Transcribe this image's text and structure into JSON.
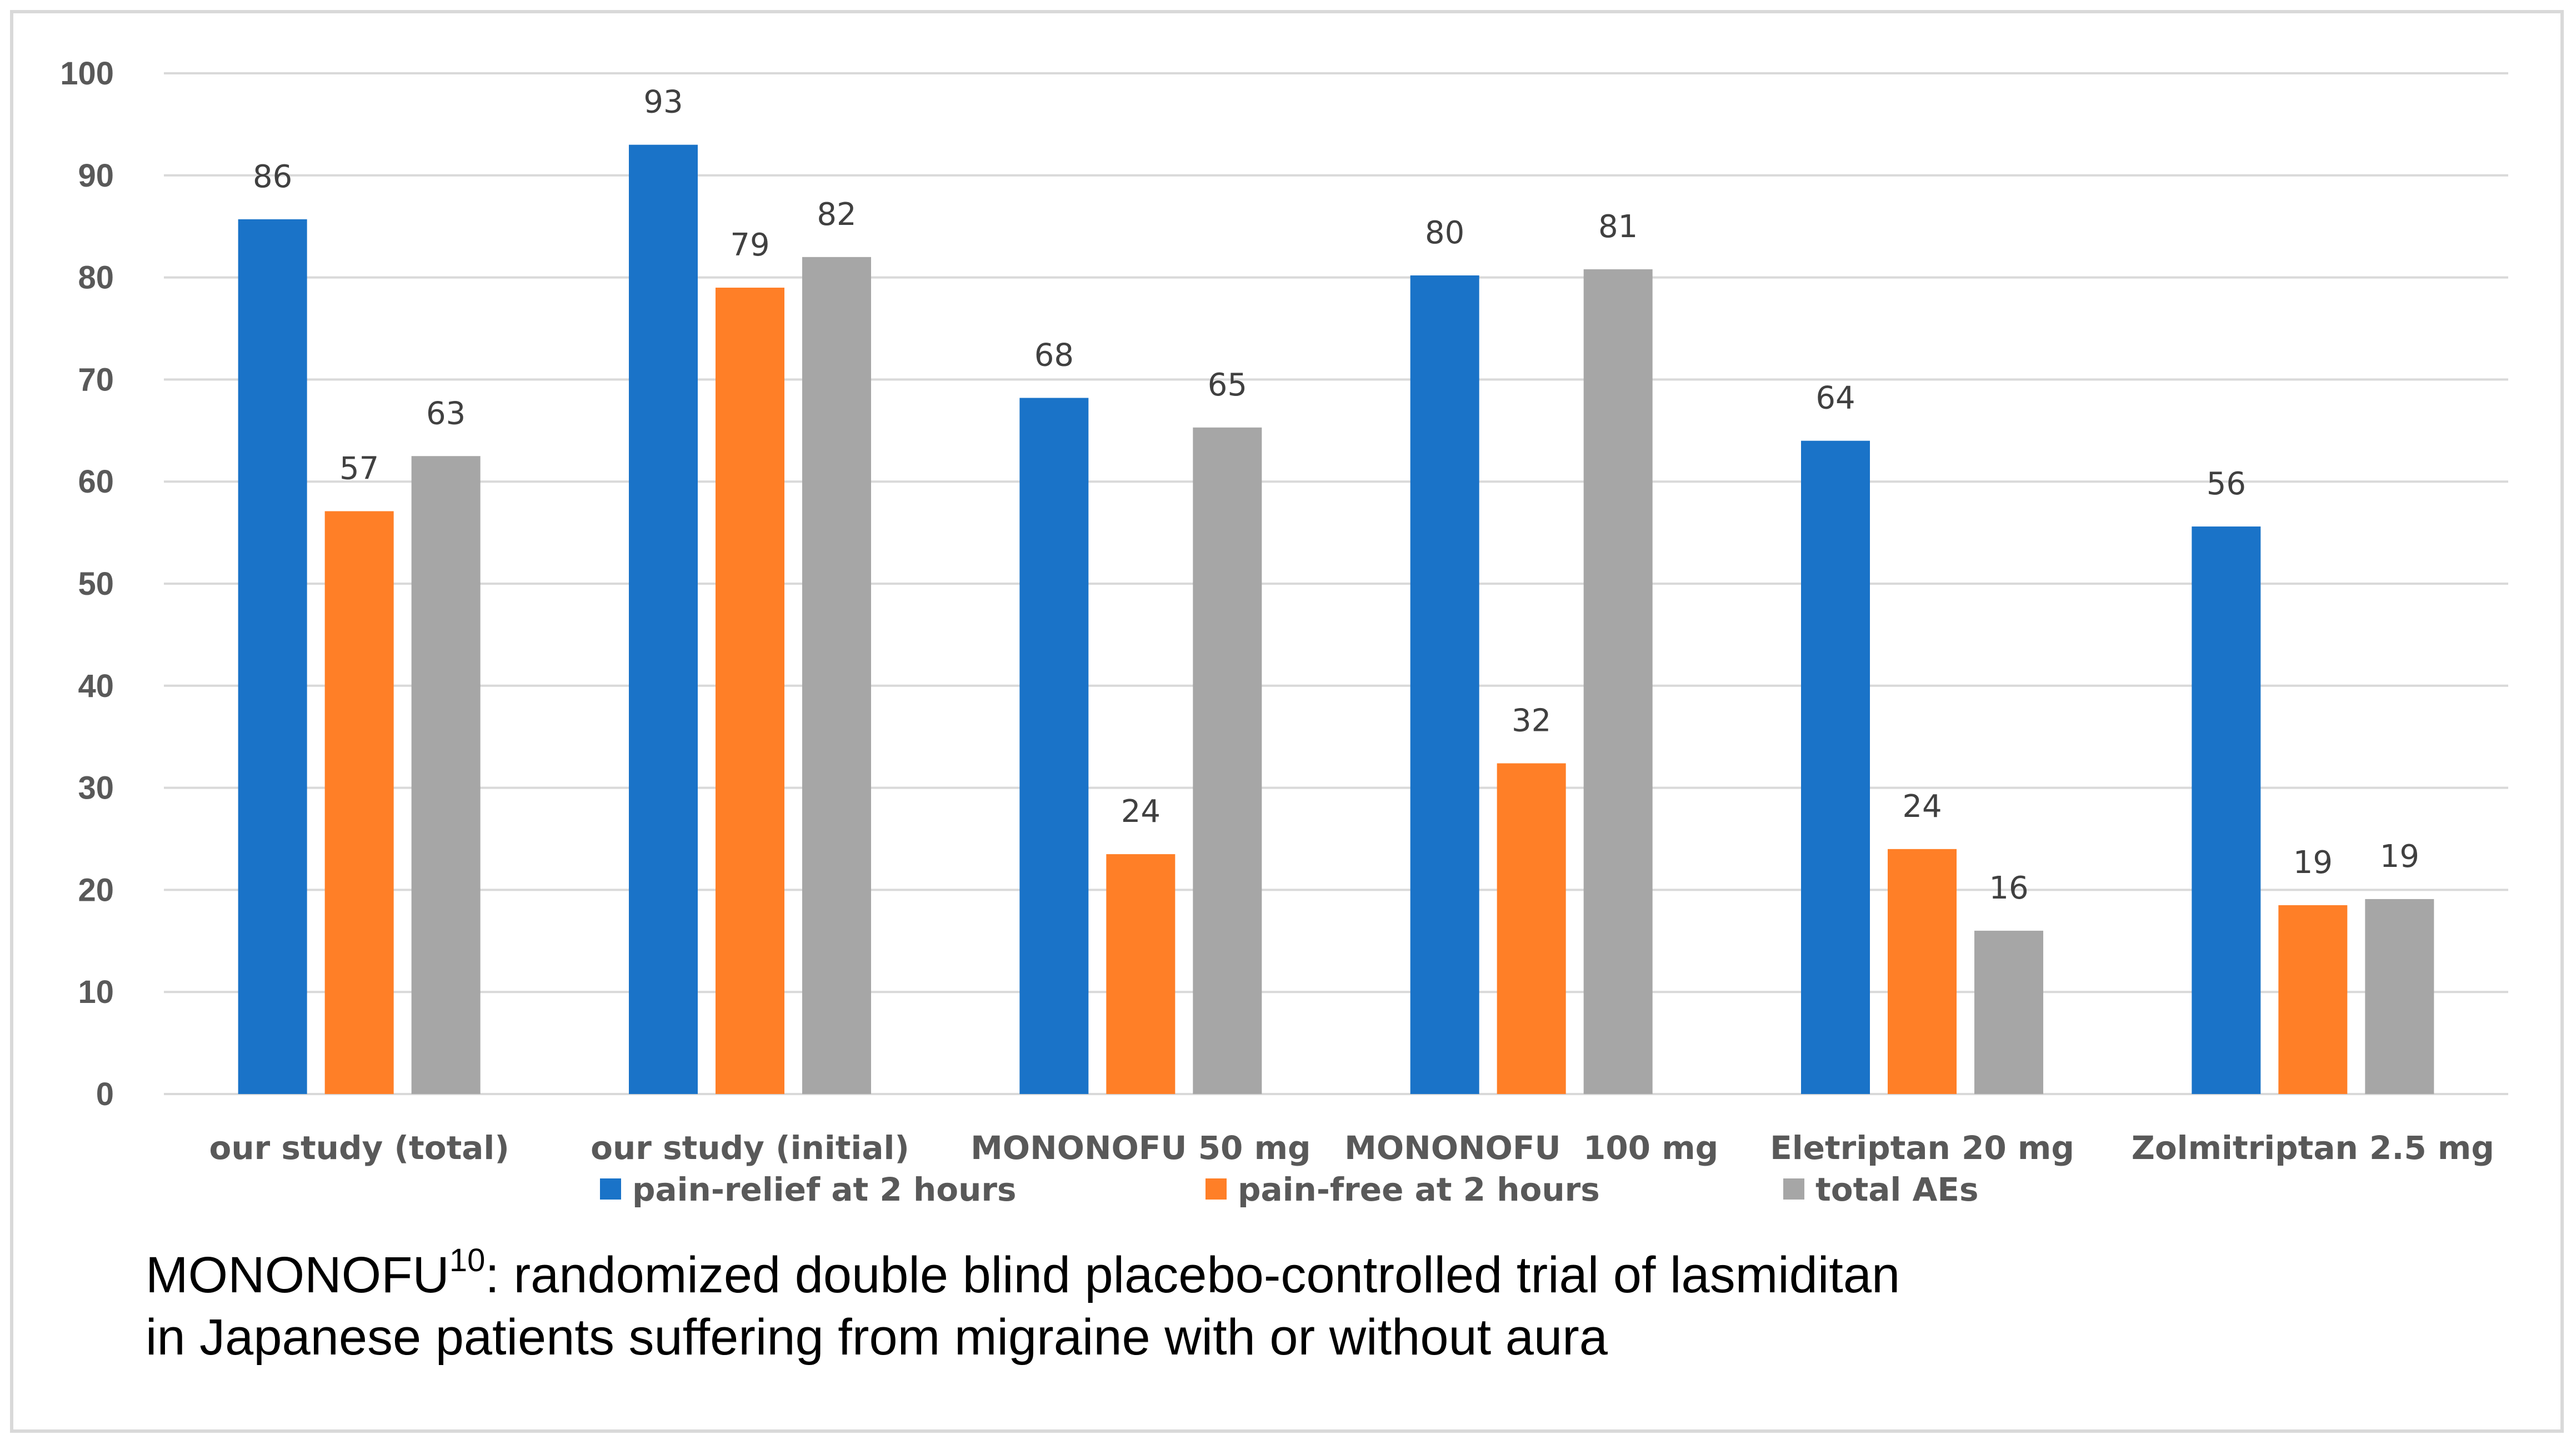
{
  "chart_data": {
    "type": "bar",
    "title": "",
    "xlabel": "",
    "ylabel": "",
    "ylim": [
      0,
      100
    ],
    "yticks": [
      0,
      10,
      20,
      30,
      40,
      50,
      60,
      70,
      80,
      90,
      100
    ],
    "grid": true,
    "legend_position": "bottom",
    "categories": [
      "our study (total)",
      "our study (initial)",
      "MONONOFU 50 mg",
      "MONONOFU  100 mg",
      "Eletriptan 20 mg",
      "Zolmitriptan 2.5 mg"
    ],
    "series": [
      {
        "name": "pain-relief at 2 hours",
        "color": "#1a73c8",
        "values": [
          85.7,
          93.0,
          68.2,
          80.2,
          64.0,
          55.6
        ],
        "labels": [
          "86",
          "93",
          "68",
          "80",
          "64",
          "56"
        ]
      },
      {
        "name": "pain-free at 2 hours",
        "color": "#ff7f27",
        "values": [
          57.1,
          79.0,
          23.5,
          32.4,
          24.0,
          18.5
        ],
        "labels": [
          "57",
          "79",
          "24",
          "32",
          "24",
          "19"
        ]
      },
      {
        "name": "total AEs",
        "color": "#a6a6a6",
        "values": [
          62.5,
          82.0,
          65.3,
          80.8,
          16.0,
          19.1
        ],
        "labels": [
          "63",
          "82",
          "65",
          "81",
          "16",
          "19"
        ]
      }
    ]
  },
  "footnote": {
    "line1_prefix": "MONONOFU",
    "line1_sup": "10",
    "line1_rest": ": randomized double blind placebo-controlled trial of lasmiditan",
    "line2": "in Japanese patients suffering from migraine with or without aura"
  }
}
